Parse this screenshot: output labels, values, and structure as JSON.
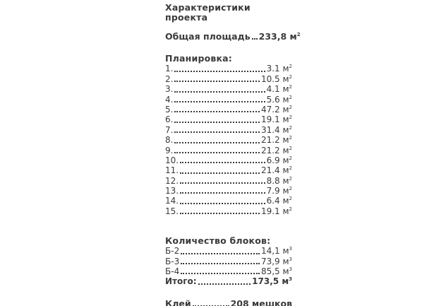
{
  "colors": {
    "text": "#3a3a3a",
    "background": "#ffffff"
  },
  "header": {
    "title": "Характеристики проекта"
  },
  "total_area": {
    "label": "Общая площадь",
    "value": "233,8",
    "unit": "м",
    "sup": "2"
  },
  "plan": {
    "header": "Планировка:",
    "unit": "м",
    "sup": "2",
    "items": [
      {
        "label": "1.",
        "value": "3.1"
      },
      {
        "label": "2.",
        "value": "10.5"
      },
      {
        "label": "3.",
        "value": "4.1"
      },
      {
        "label": "4.",
        "value": "5.6"
      },
      {
        "label": "5.",
        "value": "47.2"
      },
      {
        "label": "6.",
        "value": "19.1"
      },
      {
        "label": "7.",
        "value": "31.4"
      },
      {
        "label": "8.",
        "value": "21.2"
      },
      {
        "label": "9.",
        "value": "21.2"
      },
      {
        "label": "10.",
        "value": "6.9"
      },
      {
        "label": "11.",
        "value": "21.4"
      },
      {
        "label": "12.",
        "value": "8.8"
      },
      {
        "label": "13.",
        "value": "7.9"
      },
      {
        "label": "14.",
        "value": "6.4"
      },
      {
        "label": "15.",
        "value": "19.1"
      }
    ]
  },
  "blocks": {
    "header": "Количество блоков:",
    "unit": "м",
    "sup": "3",
    "items": [
      {
        "label": "Б-2",
        "value": "14,1"
      },
      {
        "label": "Б-3",
        "value": "73,9"
      },
      {
        "label": "Б-4",
        "value": "85,5"
      }
    ],
    "total": {
      "label": "Итого:",
      "value": "173,5"
    }
  },
  "glue": {
    "label": "Клей",
    "value": "208 мешков"
  }
}
